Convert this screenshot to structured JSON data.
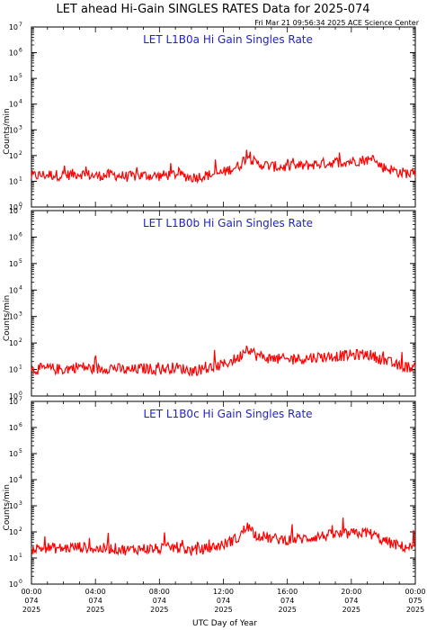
{
  "header": {
    "title": "LET ahead Hi-Gain SINGLES RATES Data for 2025-074",
    "timestamp": "Fri Mar 21 09:56:34 2025 ACE Science Center"
  },
  "axes": {
    "ylabel": "Counts/min",
    "xlabel": "UTC Day of Year",
    "y_tick_base": "10",
    "y_tick_exponents": [
      "0",
      "1",
      "2",
      "3",
      "4",
      "5",
      "6",
      "7"
    ],
    "x_ticks": [
      {
        "time": "00:00",
        "doy": "074",
        "year": "2025"
      },
      {
        "time": "04:00",
        "doy": "074",
        "year": "2025"
      },
      {
        "time": "08:00",
        "doy": "074",
        "year": "2025"
      },
      {
        "time": "12:00",
        "doy": "074",
        "year": "2025"
      },
      {
        "time": "16:00",
        "doy": "074",
        "year": "2025"
      },
      {
        "time": "20:00",
        "doy": "074",
        "year": "2025"
      },
      {
        "time": "00:00",
        "doy": "075",
        "year": "2025"
      }
    ]
  },
  "colors": {
    "series": "#ff0000",
    "panel_title": "#1f1fd0",
    "axis": "#000000"
  },
  "chart_data": [
    {
      "type": "line",
      "title": "LET L1B0a Hi Gain Singles Rate",
      "xlabel": "",
      "ylabel": "Counts/min",
      "y_scale": "log",
      "ylim": [
        1,
        10000000
      ],
      "xlim_hours": [
        0,
        24
      ],
      "x_hours": [
        0,
        1,
        2,
        3,
        4,
        5,
        6,
        7,
        8,
        9,
        10,
        11,
        12,
        13,
        13.5,
        14,
        15,
        16,
        17,
        18,
        19,
        20,
        21,
        22,
        23,
        24
      ],
      "values": [
        16,
        18,
        17,
        20,
        16,
        18,
        15,
        17,
        16,
        19,
        14,
        17,
        22,
        40,
        90,
        50,
        38,
        35,
        40,
        48,
        55,
        60,
        70,
        35,
        22,
        20
      ]
    },
    {
      "type": "line",
      "title": "LET L1B0b Hi Gain Singles Rate",
      "xlabel": "",
      "ylabel": "Counts/min",
      "y_scale": "log",
      "ylim": [
        1,
        10000000
      ],
      "xlim_hours": [
        0,
        24
      ],
      "x_hours": [
        0,
        1,
        2,
        3,
        4,
        5,
        6,
        7,
        8,
        9,
        10,
        11,
        12,
        13,
        13.5,
        14,
        15,
        16,
        17,
        18,
        19,
        20,
        21,
        22,
        23,
        24
      ],
      "values": [
        10,
        11,
        10,
        13,
        10,
        12,
        9,
        11,
        10,
        12,
        9,
        11,
        15,
        28,
        70,
        35,
        25,
        24,
        26,
        30,
        32,
        35,
        38,
        22,
        13,
        12
      ]
    },
    {
      "type": "line",
      "title": "LET L1B0c Hi Gain Singles Rate",
      "xlabel": "",
      "ylabel": "Counts/min",
      "y_scale": "log",
      "ylim": [
        1,
        10000000
      ],
      "xlim_hours": [
        0,
        24
      ],
      "x_hours": [
        0,
        1,
        2,
        3,
        4,
        5,
        6,
        7,
        8,
        9,
        10,
        11,
        12,
        13,
        13.5,
        14,
        15,
        16,
        17,
        18,
        19,
        20,
        21,
        22,
        23,
        24
      ],
      "values": [
        22,
        25,
        23,
        27,
        22,
        24,
        20,
        23,
        22,
        26,
        19,
        23,
        32,
        60,
        160,
        80,
        55,
        50,
        55,
        68,
        78,
        85,
        95,
        45,
        28,
        25
      ]
    }
  ]
}
